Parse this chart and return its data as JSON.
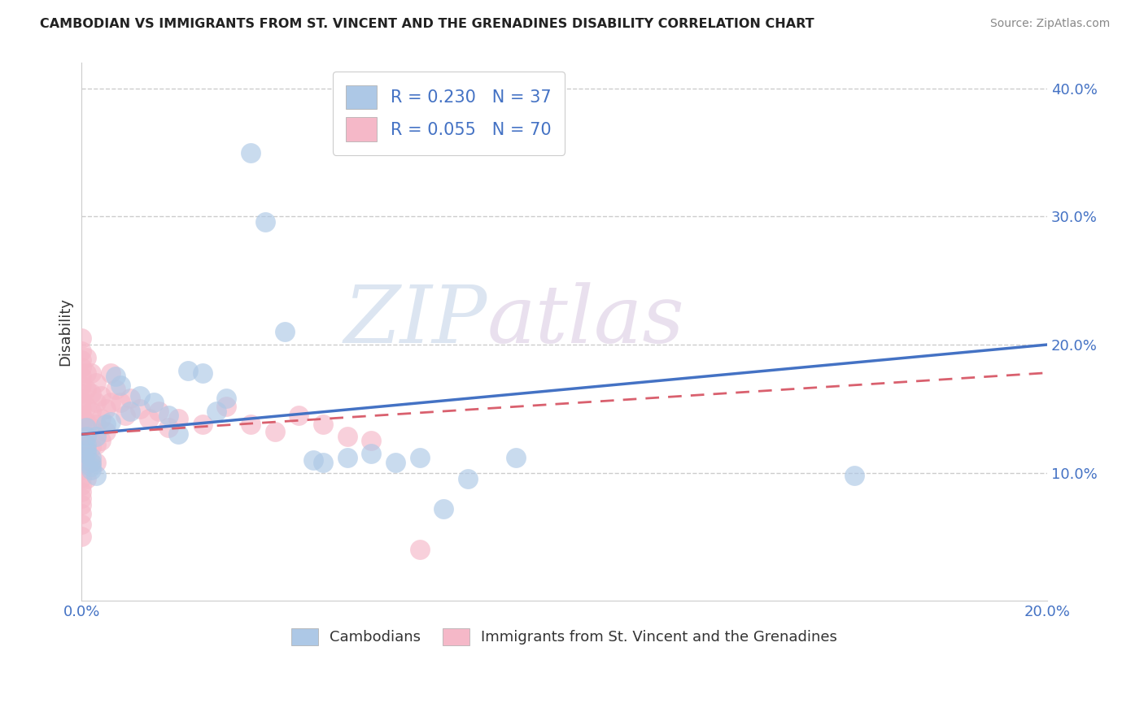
{
  "title": "CAMBODIAN VS IMMIGRANTS FROM ST. VINCENT AND THE GRENADINES DISABILITY CORRELATION CHART",
  "source": "Source: ZipAtlas.com",
  "ylabel": "Disability",
  "xlim": [
    0.0,
    0.2
  ],
  "ylim": [
    0.0,
    0.42
  ],
  "ytick_vals": [
    0.1,
    0.2,
    0.3,
    0.4
  ],
  "xtick_vals": [
    0.0,
    0.2
  ],
  "legend_r1": "R = 0.230",
  "legend_n1": "N = 37",
  "legend_r2": "R = 0.055",
  "legend_n2": "N = 70",
  "blue_color": "#adc8e6",
  "pink_color": "#f5b8c8",
  "blue_line_color": "#4472c4",
  "pink_line_color": "#d9606e",
  "watermark_zip": "ZIP",
  "watermark_atlas": "atlas",
  "cambodians_label": "Cambodians",
  "svg_label": "Immigrants from St. Vincent and the Grenadines",
  "blue_line": [
    [
      0.0,
      0.13
    ],
    [
      0.2,
      0.2
    ]
  ],
  "pink_line": [
    [
      0.0,
      0.13
    ],
    [
      0.2,
      0.178
    ]
  ],
  "blue_points": [
    [
      0.001,
      0.135
    ],
    [
      0.001,
      0.128
    ],
    [
      0.001,
      0.122
    ],
    [
      0.001,
      0.118
    ],
    [
      0.001,
      0.115
    ],
    [
      0.002,
      0.112
    ],
    [
      0.002,
      0.108
    ],
    [
      0.002,
      0.105
    ],
    [
      0.002,
      0.102
    ],
    [
      0.003,
      0.098
    ],
    [
      0.003,
      0.128
    ],
    [
      0.005,
      0.138
    ],
    [
      0.006,
      0.14
    ],
    [
      0.007,
      0.175
    ],
    [
      0.008,
      0.168
    ],
    [
      0.01,
      0.148
    ],
    [
      0.012,
      0.16
    ],
    [
      0.015,
      0.155
    ],
    [
      0.018,
      0.145
    ],
    [
      0.02,
      0.13
    ],
    [
      0.022,
      0.18
    ],
    [
      0.025,
      0.178
    ],
    [
      0.028,
      0.148
    ],
    [
      0.03,
      0.158
    ],
    [
      0.035,
      0.35
    ],
    [
      0.038,
      0.296
    ],
    [
      0.042,
      0.21
    ],
    [
      0.048,
      0.11
    ],
    [
      0.05,
      0.108
    ],
    [
      0.055,
      0.112
    ],
    [
      0.06,
      0.115
    ],
    [
      0.065,
      0.108
    ],
    [
      0.07,
      0.112
    ],
    [
      0.08,
      0.095
    ],
    [
      0.09,
      0.112
    ],
    [
      0.16,
      0.098
    ],
    [
      0.075,
      0.072
    ]
  ],
  "pink_points": [
    [
      0.0,
      0.205
    ],
    [
      0.0,
      0.195
    ],
    [
      0.0,
      0.188
    ],
    [
      0.0,
      0.182
    ],
    [
      0.0,
      0.175
    ],
    [
      0.0,
      0.168
    ],
    [
      0.0,
      0.162
    ],
    [
      0.0,
      0.156
    ],
    [
      0.0,
      0.15
    ],
    [
      0.0,
      0.145
    ],
    [
      0.0,
      0.138
    ],
    [
      0.0,
      0.132
    ],
    [
      0.0,
      0.125
    ],
    [
      0.0,
      0.12
    ],
    [
      0.0,
      0.115
    ],
    [
      0.0,
      0.108
    ],
    [
      0.0,
      0.102
    ],
    [
      0.0,
      0.096
    ],
    [
      0.0,
      0.09
    ],
    [
      0.0,
      0.085
    ],
    [
      0.0,
      0.08
    ],
    [
      0.0,
      0.075
    ],
    [
      0.0,
      0.068
    ],
    [
      0.0,
      0.06
    ],
    [
      0.0,
      0.05
    ],
    [
      0.001,
      0.19
    ],
    [
      0.001,
      0.178
    ],
    [
      0.001,
      0.165
    ],
    [
      0.001,
      0.152
    ],
    [
      0.001,
      0.14
    ],
    [
      0.001,
      0.128
    ],
    [
      0.001,
      0.118
    ],
    [
      0.001,
      0.108
    ],
    [
      0.001,
      0.095
    ],
    [
      0.002,
      0.178
    ],
    [
      0.002,
      0.162
    ],
    [
      0.002,
      0.148
    ],
    [
      0.002,
      0.135
    ],
    [
      0.002,
      0.12
    ],
    [
      0.002,
      0.108
    ],
    [
      0.003,
      0.17
    ],
    [
      0.003,
      0.155
    ],
    [
      0.003,
      0.138
    ],
    [
      0.003,
      0.122
    ],
    [
      0.003,
      0.108
    ],
    [
      0.004,
      0.16
    ],
    [
      0.004,
      0.142
    ],
    [
      0.004,
      0.125
    ],
    [
      0.005,
      0.15
    ],
    [
      0.005,
      0.132
    ],
    [
      0.006,
      0.178
    ],
    [
      0.006,
      0.155
    ],
    [
      0.007,
      0.165
    ],
    [
      0.008,
      0.155
    ],
    [
      0.009,
      0.145
    ],
    [
      0.01,
      0.158
    ],
    [
      0.012,
      0.15
    ],
    [
      0.014,
      0.142
    ],
    [
      0.016,
      0.148
    ],
    [
      0.018,
      0.135
    ],
    [
      0.02,
      0.142
    ],
    [
      0.025,
      0.138
    ],
    [
      0.03,
      0.152
    ],
    [
      0.035,
      0.138
    ],
    [
      0.04,
      0.132
    ],
    [
      0.045,
      0.145
    ],
    [
      0.05,
      0.138
    ],
    [
      0.055,
      0.128
    ],
    [
      0.06,
      0.125
    ],
    [
      0.07,
      0.04
    ]
  ]
}
